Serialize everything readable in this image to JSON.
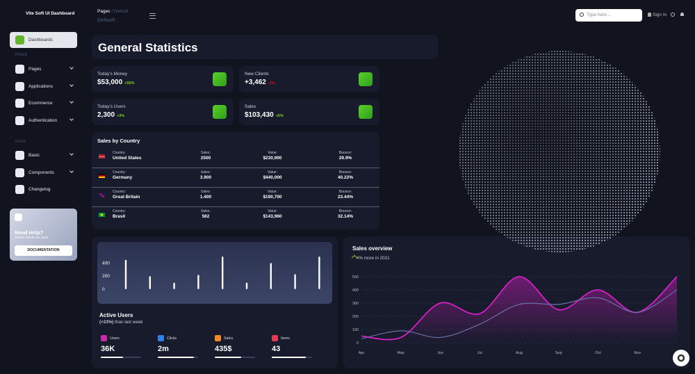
{
  "sidebar": {
    "brand": "Vite Soft UI Dashboard",
    "active_item": "Dashboards",
    "pages_section": "PAGES",
    "pages_items": [
      "Pages",
      "Applications",
      "Ecommerce",
      "Authentication"
    ],
    "docs_section": "DOCS",
    "docs_items": [
      "Basic",
      "Components",
      "Changelog"
    ],
    "help": {
      "title": "Need Help?",
      "text": "Please check our docs",
      "button": "DOCUMENTATION"
    }
  },
  "topbar": {
    "breadcrumb": [
      "Pages",
      "Default"
    ],
    "page_title": "Default",
    "search_placeholder": "Type here...",
    "sign_in": "Sign In"
  },
  "heading": "General Statistics",
  "stats": [
    {
      "label": "Today's Money",
      "value": "$53,000",
      "change": "+55%",
      "change_color": "#82d616"
    },
    {
      "label": "New Clients",
      "value": "+3,462",
      "change": "-2%",
      "change_color": "#ea0606"
    },
    {
      "label": "Today's Users",
      "value": "2,300",
      "change": "+3%",
      "change_color": "#82d616"
    },
    {
      "label": "Sales",
      "value": "$103,430",
      "change": "+5%",
      "change_color": "#82d616"
    }
  ],
  "sales_by_country": {
    "title": "Sales by Country",
    "column_labels": [
      "Country:",
      "Sales:",
      "Value:",
      "Bounce:"
    ],
    "rows": [
      [
        "United States",
        "2500",
        "$230,900",
        "29.9%"
      ],
      [
        "Germany",
        "3.900",
        "$440,000",
        "40.22%"
      ],
      [
        "Great Britain",
        "1.400",
        "$190,700",
        "23.44%"
      ],
      [
        "Brasil",
        "562",
        "$143,960",
        "32.14%"
      ]
    ]
  },
  "active_users": {
    "title": "Active Users",
    "change": "(+23%)",
    "subtitle": "than last week",
    "metrics": [
      {
        "label": "Users",
        "value": "36K"
      },
      {
        "label": "Clicks",
        "value": "2m"
      },
      {
        "label": "Sales",
        "value": "435$"
      },
      {
        "label": "Items",
        "value": "43"
      }
    ],
    "chart": {
      "type": "bar",
      "values": [
        450,
        200,
        100,
        220,
        500,
        100,
        400,
        230,
        500
      ],
      "color": "#ffffff",
      "ylim": [
        0,
        500
      ],
      "yticks": [
        0,
        200,
        400
      ]
    }
  },
  "sales_overview": {
    "title": "Sales overview",
    "subtitle": "4% more in 2021",
    "chart": {
      "type": "line",
      "categories": [
        "Apr",
        "May",
        "Jun",
        "Jul",
        "Aug",
        "Sep",
        "Oct",
        "Nov",
        null
      ],
      "series": [
        {
          "color": "#d61fc5",
          "values": [
            50,
            40,
            300,
            220,
            500,
            250,
            400,
            230,
            500
          ]
        },
        {
          "color": "#6b6fa8",
          "values": [
            30,
            90,
            40,
            140,
            290,
            290,
            340,
            230,
            400
          ]
        }
      ],
      "ylim": [
        0,
        500
      ],
      "yticks": [
        0,
        100,
        200,
        300,
        400,
        500
      ],
      "grid": true
    }
  }
}
